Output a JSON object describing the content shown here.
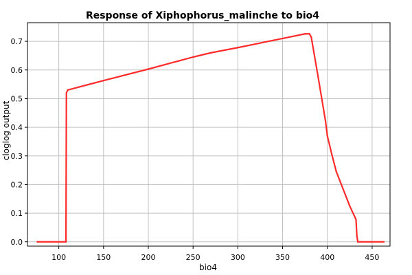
{
  "chart_data": {
    "type": "line",
    "title": "Response of Xiphophorus_malinche to bio4",
    "xlabel": "bio4",
    "ylabel": "cloglog output",
    "xlim": [
      65,
      470
    ],
    "ylim": [
      -0.015,
      0.765
    ],
    "xticks": [
      100,
      150,
      200,
      250,
      300,
      350,
      400,
      450
    ],
    "yticks": [
      0.0,
      0.1,
      0.2,
      0.3,
      0.4,
      0.5,
      0.6,
      0.7
    ],
    "ytick_labels": [
      "0.0",
      "0.1",
      "0.2",
      "0.3",
      "0.4",
      "0.5",
      "0.6",
      "0.7"
    ],
    "grid": true,
    "legend": "none",
    "series": [
      {
        "color": "#ff2a2a",
        "x": [
          76,
          108,
          108.5,
          110,
          150,
          200,
          250,
          270,
          300,
          350,
          375,
          380,
          382,
          390,
          398,
          400,
          405,
          410,
          420,
          425,
          432,
          433,
          434,
          463
        ],
        "y": [
          0.0,
          0.0,
          0.52,
          0.53,
          0.563,
          0.603,
          0.645,
          0.66,
          0.678,
          0.71,
          0.726,
          0.726,
          0.715,
          0.57,
          0.42,
          0.37,
          0.305,
          0.245,
          0.165,
          0.125,
          0.078,
          0.02,
          0.0,
          0.0
        ]
      }
    ]
  }
}
